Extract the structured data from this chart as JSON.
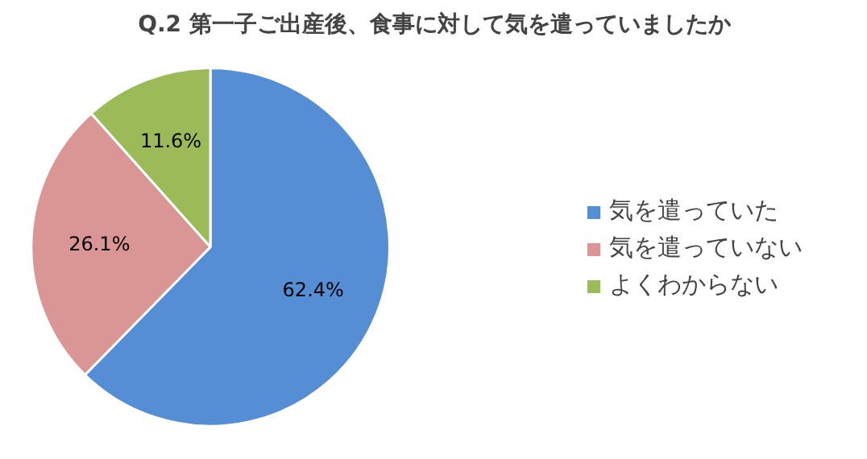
{
  "chart_data": {
    "type": "pie",
    "title": "Q.2 第一子ご出産後、食事に対して気を遣っていましたか",
    "categories": [
      "気を遣っていた",
      "気を遣っていない",
      "よくわからない"
    ],
    "values": [
      62.4,
      26.1,
      11.6
    ],
    "value_labels": [
      "62.4%",
      "26.1%",
      "11.6%"
    ],
    "colors": [
      "#558ed5",
      "#d99694",
      "#9bbb59"
    ],
    "legend": "right"
  }
}
